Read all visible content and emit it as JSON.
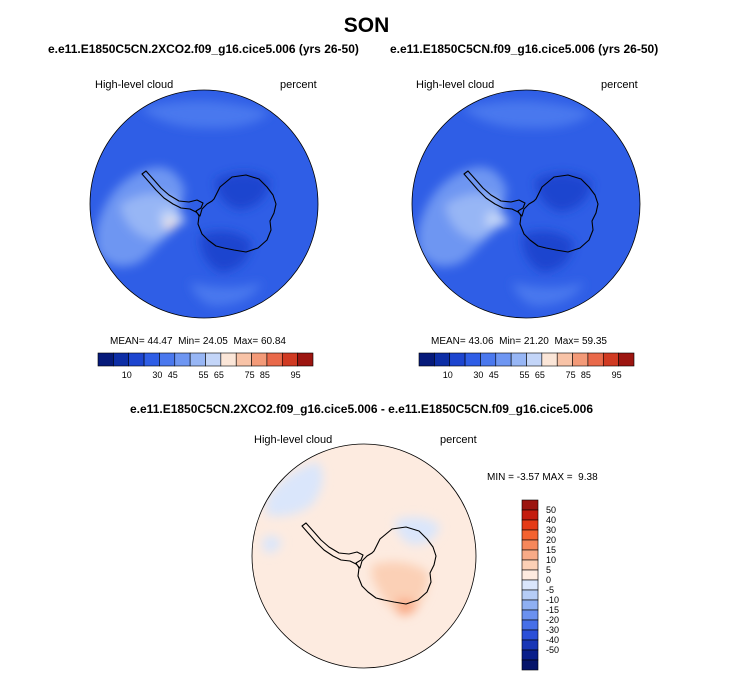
{
  "page": {
    "title": "SON"
  },
  "chart_data": [
    {
      "type": "heatmap",
      "projection": "south-polar-stereographic",
      "title": "e.e11.E1850C5CN.2XCO2.f09_g16.cice5.006 (yrs 26-50)",
      "variable": "High-level cloud",
      "units": "percent",
      "stats": {
        "mean_label": "MEAN=",
        "mean": "44.47",
        "min_label": "Min=",
        "min": "24.05",
        "max_label": "Max=",
        "max": "60.84"
      },
      "colorbar": {
        "orientation": "horizontal",
        "colors": [
          "#061a7a",
          "#0d2ea6",
          "#1d45cf",
          "#2f5ee6",
          "#4a78ee",
          "#6e96f2",
          "#97b6f5",
          "#c3d5f8",
          "#fbe6d8",
          "#f8c3a7",
          "#f39a78",
          "#e9694a",
          "#d03a22",
          "#9c1510"
        ],
        "tick_labels": [
          "10",
          "30",
          "45",
          "55",
          "65",
          "75",
          "85",
          "95"
        ]
      }
    },
    {
      "type": "heatmap",
      "projection": "south-polar-stereographic",
      "title": "e.e11.E1850C5CN.f09_g16.cice5.006 (yrs 26-50)",
      "variable": "High-level cloud",
      "units": "percent",
      "stats": {
        "mean_label": "MEAN=",
        "mean": "43.06",
        "min_label": "Min=",
        "min": "21.20",
        "max_label": "Max=",
        "max": "59.35"
      },
      "colorbar": {
        "orientation": "horizontal",
        "colors": [
          "#061a7a",
          "#0d2ea6",
          "#1d45cf",
          "#2f5ee6",
          "#4a78ee",
          "#6e96f2",
          "#97b6f5",
          "#c3d5f8",
          "#fbe6d8",
          "#f8c3a7",
          "#f39a78",
          "#e9694a",
          "#d03a22",
          "#9c1510"
        ],
        "tick_labels": [
          "10",
          "30",
          "45",
          "55",
          "65",
          "75",
          "85",
          "95"
        ]
      }
    },
    {
      "type": "heatmap",
      "projection": "south-polar-stereographic",
      "title": "e.e11.E1850C5CN.2XCO2.f09_g16.cice5.006 - e.e11.E1850C5CN.f09_g16.cice5.006",
      "variable": "High-level cloud",
      "units": "percent",
      "stats": {
        "min_label": "MIN =",
        "min": "-3.57",
        "max_label": "MAX =",
        "max": "9.38"
      },
      "colorbar": {
        "orientation": "vertical",
        "colors": [
          "#9c1510",
          "#c41d10",
          "#e53a16",
          "#f4622f",
          "#f7875a",
          "#f9ab87",
          "#fbd0b6",
          "#fdebe0",
          "#dae6fb",
          "#b6cdf7",
          "#8fb0f3",
          "#6b91ef",
          "#466fe8",
          "#2b4fd8",
          "#1836b6",
          "#0a1f8a",
          "#06146a"
        ],
        "tick_labels": [
          "50",
          "40",
          "30",
          "20",
          "15",
          "10",
          "5",
          "0",
          "-5",
          "-10",
          "-15",
          "-20",
          "-30",
          "-40",
          "-50"
        ]
      }
    }
  ]
}
